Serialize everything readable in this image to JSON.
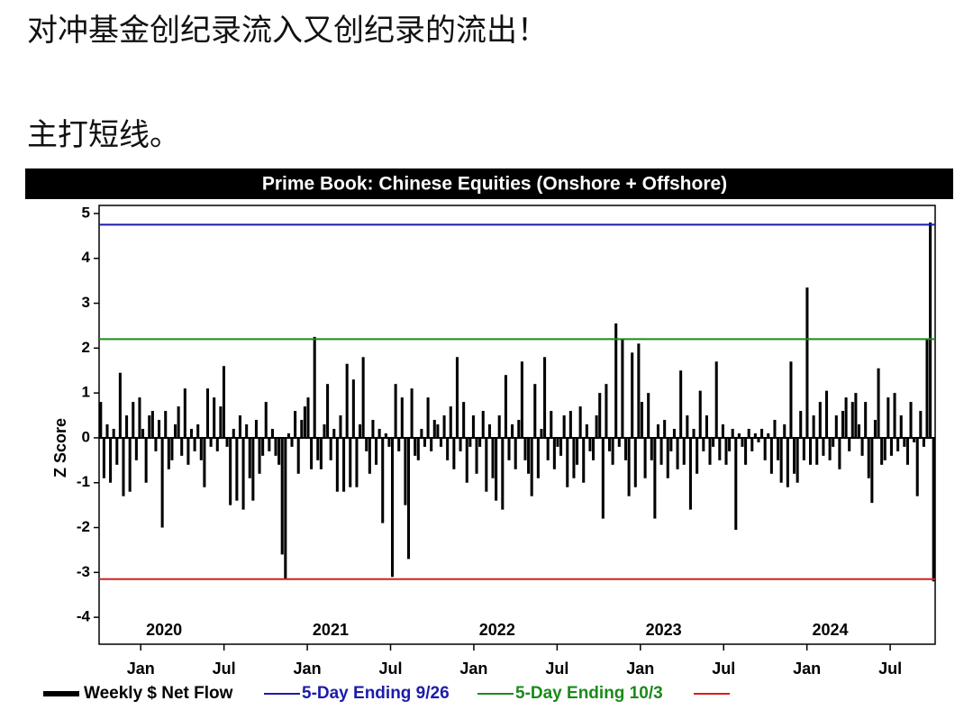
{
  "post": {
    "line1": "对冲基金创纪录流入又创纪录的流出！",
    "line2": "主打短线。"
  },
  "chart_data": {
    "type": "bar",
    "title": "Prime Book: Chinese Equities (Onshore + Offshore)",
    "ylabel": "Z Score",
    "xlim": [
      2019.75,
      2024.77
    ],
    "xticks": [
      {
        "value": 2020.0,
        "label": "Jan"
      },
      {
        "value": 2020.5,
        "label": "Jul"
      },
      {
        "value": 2021.0,
        "label": "Jan"
      },
      {
        "value": 2021.5,
        "label": "Jul"
      },
      {
        "value": 2022.0,
        "label": "Jan"
      },
      {
        "value": 2022.5,
        "label": "Jul"
      },
      {
        "value": 2023.0,
        "label": "Jan"
      },
      {
        "value": 2023.5,
        "label": "Jul"
      },
      {
        "value": 2024.0,
        "label": "Jan"
      },
      {
        "value": 2024.5,
        "label": "Jul"
      }
    ],
    "year_labels": [
      2020,
      2021,
      2022,
      2023,
      2024
    ],
    "ylim": [
      -4.6,
      5.18
    ],
    "yticks": [
      5,
      4,
      3,
      2,
      1,
      0,
      -1,
      -2,
      -3,
      -4
    ],
    "series": [
      {
        "name": "Weekly $ Net Flow",
        "color": "#000000",
        "values": [
          0.8,
          -0.9,
          0.3,
          -1.0,
          0.2,
          -0.6,
          1.45,
          -1.3,
          0.5,
          -1.2,
          0.8,
          -0.5,
          0.9,
          0.2,
          -1.0,
          0.5,
          0.6,
          -0.3,
          0.4,
          -2.0,
          0.6,
          -0.7,
          -0.5,
          0.3,
          0.7,
          -0.4,
          1.1,
          -0.6,
          0.2,
          -0.3,
          0.3,
          -0.5,
          -1.1,
          1.1,
          -0.2,
          0.9,
          -0.3,
          0.7,
          1.6,
          -0.2,
          -1.5,
          0.2,
          -1.4,
          0.5,
          -1.6,
          0.3,
          -0.9,
          -1.4,
          0.4,
          -0.8,
          -0.4,
          0.8,
          -0.3,
          0.2,
          -0.4,
          -0.6,
          -2.6,
          -3.15,
          0.1,
          -0.2,
          0.6,
          -0.8,
          0.4,
          0.7,
          0.9,
          -0.7,
          2.25,
          -0.5,
          -0.7,
          0.3,
          1.2,
          -0.5,
          0.2,
          -1.2,
          0.5,
          -1.2,
          1.65,
          -1.1,
          1.3,
          -1.1,
          0.3,
          1.8,
          -0.3,
          -0.8,
          0.4,
          -0.6,
          0.2,
          -1.9,
          0.1,
          -0.2,
          -3.1,
          1.2,
          -0.3,
          0.9,
          -1.5,
          -2.7,
          1.1,
          -0.4,
          -0.5,
          0.2,
          -0.2,
          0.9,
          -0.3,
          0.4,
          0.3,
          -0.2,
          0.5,
          -0.5,
          0.7,
          -0.7,
          1.8,
          -0.3,
          0.8,
          -1.0,
          -0.2,
          0.5,
          -0.8,
          -0.2,
          0.6,
          -1.2,
          0.3,
          -0.9,
          -1.4,
          0.5,
          -1.6,
          1.4,
          -0.5,
          0.3,
          -0.7,
          0.4,
          1.7,
          -0.5,
          -0.8,
          -1.3,
          1.2,
          -0.9,
          0.2,
          1.8,
          -0.5,
          0.6,
          -0.7,
          -0.2,
          -0.4,
          0.5,
          -1.1,
          0.6,
          -0.9,
          -0.6,
          0.7,
          -1.0,
          0.3,
          -0.3,
          -0.5,
          0.5,
          1.0,
          -1.8,
          1.2,
          -0.3,
          -0.6,
          2.55,
          -0.2,
          2.2,
          -0.5,
          -1.3,
          1.9,
          -1.1,
          2.1,
          0.8,
          -0.9,
          1.0,
          -0.5,
          -1.8,
          0.3,
          -0.6,
          0.4,
          -0.9,
          -0.3,
          0.2,
          -0.7,
          1.5,
          -0.6,
          0.5,
          -1.6,
          0.2,
          -0.8,
          1.05,
          -0.3,
          0.5,
          -0.6,
          -0.2,
          1.7,
          -0.5,
          0.3,
          -0.6,
          -0.3,
          0.2,
          -2.05,
          0.1,
          -0.2,
          -0.6,
          0.2,
          -0.3,
          0.1,
          -0.1,
          0.2,
          -0.5,
          0.1,
          -0.8,
          0.4,
          -0.5,
          -1.0,
          0.3,
          -1.1,
          1.7,
          -0.8,
          -1.0,
          0.6,
          -0.5,
          3.35,
          -0.6,
          0.5,
          -0.6,
          0.8,
          -0.4,
          1.05,
          -0.5,
          -0.2,
          0.5,
          -0.7,
          0.6,
          0.9,
          -0.3,
          0.8,
          1.0,
          0.3,
          -0.4,
          0.8,
          -0.9,
          -1.45,
          0.4,
          1.55,
          -0.6,
          -0.5,
          0.9,
          -0.4,
          1.0,
          -0.3,
          0.5,
          -0.2,
          -0.6,
          0.8,
          -0.1,
          -1.3,
          0.6,
          -0.2,
          2.2,
          4.8,
          -3.2
        ]
      }
    ],
    "reference_lines": [
      {
        "name": "5-Day Ending 9/26",
        "color": "#1c1caa",
        "value": 4.75
      },
      {
        "name": "5-Day Ending 10/3",
        "color": "#1a8a1a",
        "value": 2.2
      },
      {
        "color": "#d42020",
        "value": -3.15
      }
    ]
  }
}
